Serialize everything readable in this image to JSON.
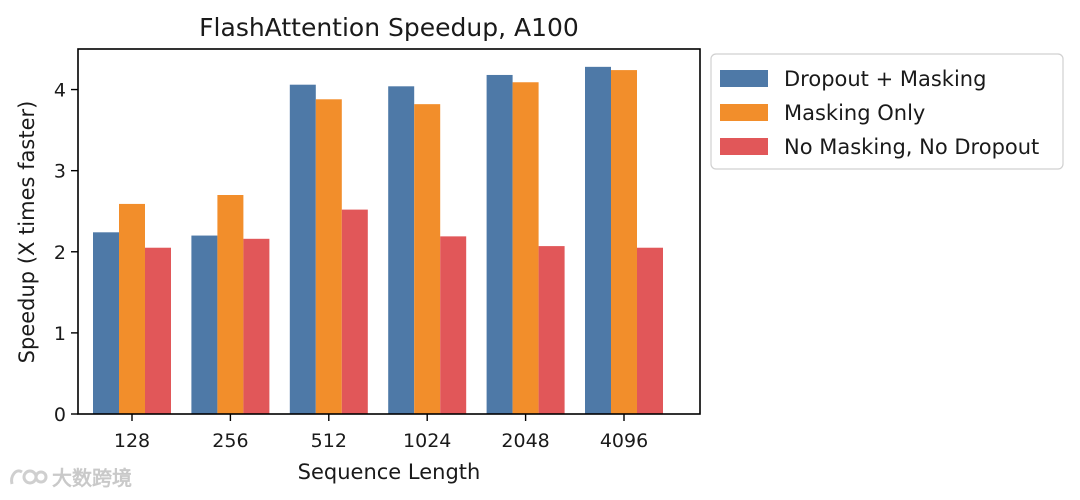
{
  "chart_data": {
    "type": "bar",
    "title": "FlashAttention Speedup, A100",
    "xlabel": "Sequence Length",
    "ylabel": "Speedup (X times faster)",
    "categories": [
      "128",
      "256",
      "512",
      "1024",
      "2048",
      "4096"
    ],
    "ylim": [
      0,
      4.5
    ],
    "yticks": [
      0,
      1,
      2,
      3,
      4
    ],
    "grid": false,
    "legend_position": "outside-right",
    "series": [
      {
        "name": "Dropout + Masking",
        "color": "#4e79a7",
        "values": [
          2.24,
          2.2,
          4.06,
          4.04,
          4.18,
          4.28
        ]
      },
      {
        "name": "Masking Only",
        "color": "#f28e2b",
        "values": [
          2.59,
          2.7,
          3.88,
          3.82,
          4.09,
          4.24
        ]
      },
      {
        "name": "No Masking, No Dropout",
        "color": "#e15759",
        "values": [
          2.05,
          2.16,
          2.52,
          2.19,
          2.07,
          2.05
        ]
      }
    ]
  },
  "watermark": {
    "text": "大数跨境",
    "icon": "watermark-logo-icon"
  }
}
